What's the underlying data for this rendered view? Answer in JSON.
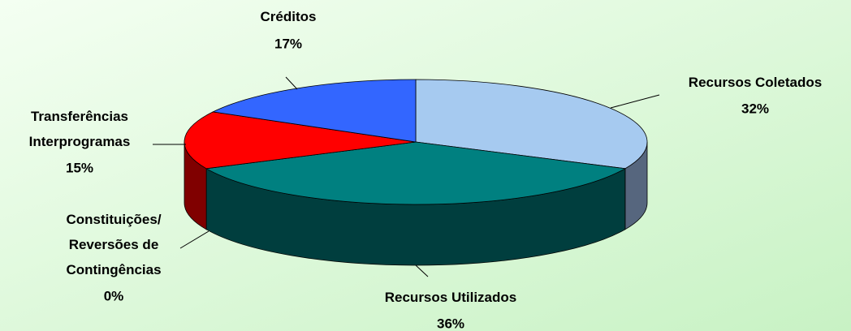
{
  "chart_data": {
    "type": "pie3d",
    "categories": [
      "Recursos Coletados",
      "Recursos Utilizados",
      "Constituições/\nReversões de\nContingências",
      "Transferências\nInterprogramas",
      "Créditos"
    ],
    "values": [
      32,
      36,
      0,
      15,
      17
    ],
    "value_labels": [
      "32%",
      "36%",
      "0%",
      "15%",
      "17%"
    ],
    "colors": [
      "#a6caf0",
      "#008080",
      "#800000",
      "#ff0000",
      "#3366ff"
    ],
    "side_colors": [
      "#56667e",
      "#003e3e",
      "#600000",
      "#800000",
      "#1a3380"
    ]
  }
}
